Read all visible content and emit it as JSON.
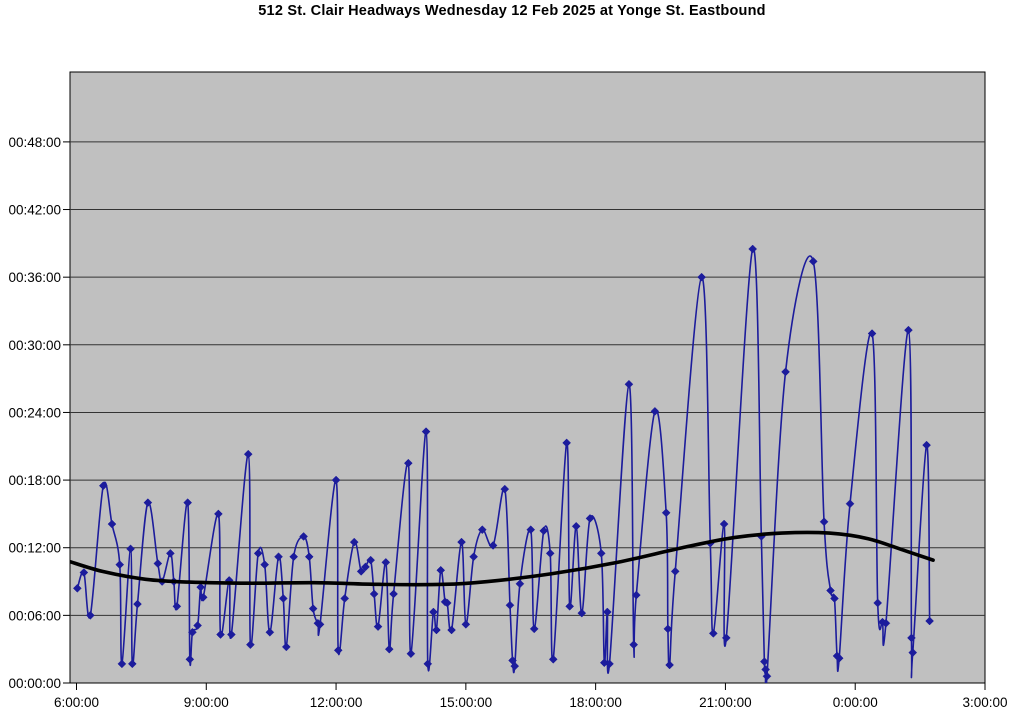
{
  "chart_data": {
    "type": "line",
    "title": "512 St. Clair Headways Wednesday 12 Feb 2025 at Yonge St. Eastbound",
    "x_axis": {
      "tick_labels": [
        "6:00:00",
        "9:00:00",
        "12:00:00",
        "15:00:00",
        "18:00:00",
        "21:00:00",
        "0:00:00",
        "3:00:00"
      ],
      "tick_hours": [
        6,
        9,
        12,
        15,
        18,
        21,
        24,
        27
      ],
      "range_hours": [
        5.85,
        27.0
      ]
    },
    "y_axis": {
      "tick_labels": [
        "00:00:00",
        "00:06:00",
        "00:12:00",
        "00:18:00",
        "00:24:00",
        "00:30:00",
        "00:36:00",
        "00:42:00",
        "00:48:00"
      ],
      "tick_minutes": [
        0,
        6,
        12,
        18,
        24,
        30,
        36,
        42,
        48
      ],
      "range_minutes": [
        0,
        54.2
      ]
    },
    "plot": {
      "background": "#c0c0c0",
      "gridline_color": "#333333",
      "border_color": "#000000"
    },
    "series": [
      {
        "name": "headways",
        "color": "#1c1c9c",
        "marker": "diamond",
        "line_width": 1.6,
        "points": [
          [
            6.02,
            8.4
          ],
          [
            6.17,
            9.8
          ],
          [
            6.32,
            6.0
          ],
          [
            6.62,
            17.5
          ],
          [
            6.82,
            14.1
          ],
          [
            7.0,
            10.5
          ],
          [
            7.05,
            1.7
          ],
          [
            7.25,
            11.9
          ],
          [
            7.29,
            1.7
          ],
          [
            7.41,
            7.0
          ],
          [
            7.65,
            16.0
          ],
          [
            7.88,
            10.6
          ],
          [
            7.98,
            9.0
          ],
          [
            8.17,
            11.5
          ],
          [
            8.25,
            9.0
          ],
          [
            8.32,
            6.8
          ],
          [
            8.57,
            16.0
          ],
          [
            8.62,
            2.1
          ],
          [
            8.68,
            4.5
          ],
          [
            8.8,
            5.1
          ],
          [
            8.87,
            8.5
          ],
          [
            8.93,
            7.6
          ],
          [
            9.28,
            15.0
          ],
          [
            9.33,
            4.3
          ],
          [
            9.53,
            9.1
          ],
          [
            9.58,
            4.3
          ],
          [
            9.97,
            20.3
          ],
          [
            10.02,
            3.4
          ],
          [
            10.2,
            11.5
          ],
          [
            10.35,
            10.5
          ],
          [
            10.47,
            4.5
          ],
          [
            10.67,
            11.2
          ],
          [
            10.78,
            7.5
          ],
          [
            10.85,
            3.2
          ],
          [
            11.02,
            11.2
          ],
          [
            11.25,
            13.0
          ],
          [
            11.38,
            11.2
          ],
          [
            11.47,
            6.6
          ],
          [
            11.58,
            5.3
          ],
          [
            11.63,
            5.2
          ],
          [
            12.0,
            18.0
          ],
          [
            12.05,
            2.9
          ],
          [
            12.2,
            7.5
          ],
          [
            12.42,
            12.5
          ],
          [
            12.58,
            9.9
          ],
          [
            12.68,
            10.3
          ],
          [
            12.8,
            10.9
          ],
          [
            12.88,
            7.9
          ],
          [
            12.97,
            5.0
          ],
          [
            13.15,
            10.7
          ],
          [
            13.23,
            3.0
          ],
          [
            13.33,
            7.9
          ],
          [
            13.67,
            19.5
          ],
          [
            13.73,
            2.6
          ],
          [
            14.08,
            22.3
          ],
          [
            14.12,
            1.7
          ],
          [
            14.25,
            6.3
          ],
          [
            14.32,
            4.7
          ],
          [
            14.42,
            10.0
          ],
          [
            14.52,
            7.2
          ],
          [
            14.57,
            7.1
          ],
          [
            14.67,
            4.7
          ],
          [
            14.9,
            12.5
          ],
          [
            15.0,
            5.2
          ],
          [
            15.18,
            11.2
          ],
          [
            15.38,
            13.6
          ],
          [
            15.63,
            12.2
          ],
          [
            15.9,
            17.2
          ],
          [
            16.02,
            6.9
          ],
          [
            16.08,
            2.0
          ],
          [
            16.13,
            1.5
          ],
          [
            16.25,
            8.8
          ],
          [
            16.5,
            13.6
          ],
          [
            16.58,
            4.8
          ],
          [
            16.8,
            13.5
          ],
          [
            16.95,
            11.5
          ],
          [
            17.02,
            2.1
          ],
          [
            17.33,
            21.3
          ],
          [
            17.4,
            6.8
          ],
          [
            17.55,
            13.9
          ],
          [
            17.68,
            6.2
          ],
          [
            17.87,
            14.6
          ],
          [
            18.13,
            11.5
          ],
          [
            18.2,
            1.8
          ],
          [
            18.27,
            6.3
          ],
          [
            18.32,
            1.7
          ],
          [
            18.77,
            26.5
          ],
          [
            18.88,
            3.4
          ],
          [
            18.94,
            7.8
          ],
          [
            19.37,
            24.1
          ],
          [
            19.63,
            15.1
          ],
          [
            19.67,
            4.8
          ],
          [
            19.71,
            1.6
          ],
          [
            19.84,
            9.9
          ],
          [
            20.45,
            36.0
          ],
          [
            20.65,
            12.4
          ],
          [
            20.72,
            4.4
          ],
          [
            20.97,
            14.1
          ],
          [
            21.02,
            4.0
          ],
          [
            21.63,
            38.5
          ],
          [
            21.83,
            13.0
          ],
          [
            21.9,
            1.9
          ],
          [
            21.93,
            1.2
          ],
          [
            21.96,
            0.6
          ],
          [
            22.39,
            27.6
          ],
          [
            23.03,
            37.4
          ],
          [
            23.28,
            14.3
          ],
          [
            23.43,
            8.2
          ],
          [
            23.52,
            7.5
          ],
          [
            23.58,
            2.4
          ],
          [
            23.63,
            2.2
          ],
          [
            23.88,
            15.9
          ],
          [
            24.39,
            31.0
          ],
          [
            24.52,
            7.1
          ],
          [
            24.63,
            5.4
          ],
          [
            24.71,
            5.3
          ],
          [
            25.23,
            31.3
          ],
          [
            25.3,
            4.0
          ],
          [
            25.33,
            2.7
          ],
          [
            25.65,
            21.1
          ],
          [
            25.72,
            5.5
          ]
        ]
      },
      {
        "name": "trend",
        "color": "#000000",
        "marker": "none",
        "line_width": 3.6,
        "points": [
          [
            5.82,
            10.8
          ],
          [
            6.6,
            9.9
          ],
          [
            7.6,
            9.2
          ],
          [
            8.6,
            8.95
          ],
          [
            10.0,
            8.85
          ],
          [
            11.5,
            8.9
          ],
          [
            13.0,
            8.75
          ],
          [
            14.5,
            8.75
          ],
          [
            15.5,
            9.0
          ],
          [
            17.0,
            9.7
          ],
          [
            18.5,
            10.7
          ],
          [
            20.0,
            12.0
          ],
          [
            21.2,
            12.9
          ],
          [
            22.3,
            13.3
          ],
          [
            23.4,
            13.3
          ],
          [
            24.3,
            12.8
          ],
          [
            25.1,
            11.8
          ],
          [
            25.8,
            10.9
          ]
        ]
      }
    ]
  }
}
